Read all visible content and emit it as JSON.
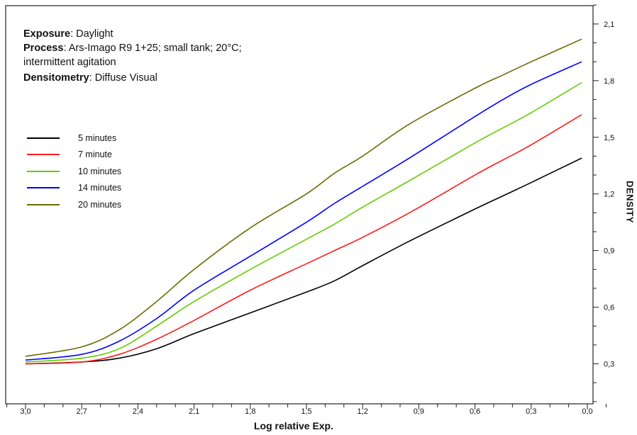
{
  "info": {
    "exposure_label": "Exposure",
    "exposure_value": ": Daylight",
    "process_label": "Process",
    "process_value": ": Ars-Imago R9 1+25; small tank; 20°C;",
    "process_value_2": "intermittent agitation",
    "densitometry_label": "Densitometry",
    "densitometry_value": ": Diffuse Visual"
  },
  "chart_data": {
    "type": "line",
    "xlabel": "Log relative Exp.",
    "ylabel": "DENSITY",
    "xlim": [
      3.3,
      -0.1
    ],
    "ylim": [
      0.1,
      2.2
    ],
    "x_ticks": [
      "3,0",
      "2,7",
      "2,4",
      "2,1",
      "1,8",
      "1,5",
      "1,2",
      "0,9",
      "0,6",
      "0,3",
      "0,0"
    ],
    "y_ticks": [
      "0,3",
      "0,6",
      "0,9",
      "1,2",
      "1,5",
      "1,8",
      "2,1"
    ],
    "grid": false,
    "legend_position": "left",
    "x": [
      3.0,
      2.7,
      2.5,
      2.3,
      2.1,
      1.8,
      1.5,
      1.35,
      1.2,
      0.95,
      0.6,
      0.45,
      0.3,
      0.03
    ],
    "series": [
      {
        "name": "5 minutes",
        "color": "#000000",
        "values": [
          0.3,
          0.31,
          0.33,
          0.38,
          0.46,
          0.57,
          0.68,
          0.74,
          0.82,
          0.95,
          1.12,
          1.19,
          1.26,
          1.39
        ]
      },
      {
        "name": "7 minute",
        "color": "#ff1a1a",
        "values": [
          0.3,
          0.31,
          0.35,
          0.43,
          0.53,
          0.69,
          0.83,
          0.9,
          0.97,
          1.1,
          1.3,
          1.38,
          1.46,
          1.62
        ]
      },
      {
        "name": "10 minutes",
        "color": "#66cc00",
        "values": [
          0.31,
          0.33,
          0.38,
          0.5,
          0.63,
          0.8,
          0.96,
          1.04,
          1.13,
          1.27,
          1.47,
          1.55,
          1.63,
          1.79
        ]
      },
      {
        "name": "14 minutes",
        "color": "#0000ff",
        "values": [
          0.32,
          0.35,
          0.42,
          0.54,
          0.69,
          0.87,
          1.05,
          1.15,
          1.24,
          1.39,
          1.61,
          1.7,
          1.78,
          1.9
        ]
      },
      {
        "name": "20 minutes",
        "color": "#6b6b00",
        "values": [
          0.34,
          0.39,
          0.48,
          0.63,
          0.8,
          1.02,
          1.2,
          1.31,
          1.4,
          1.57,
          1.76,
          1.83,
          1.9,
          2.02
        ]
      }
    ]
  }
}
